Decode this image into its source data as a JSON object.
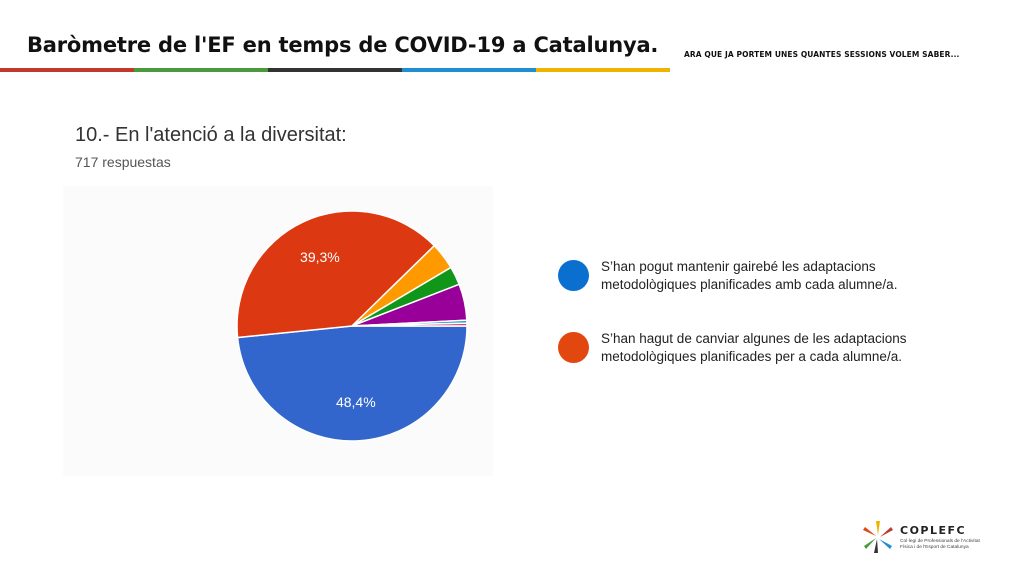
{
  "header": {
    "title": "Baròmetre de l'EF en temps de COVID-19 a Catalunya.",
    "subtitle": "ARA QUE JA PORTEM UNES QUANTES SESSIONS VOLEM SABER...",
    "bar_colors": [
      "#c0392b",
      "#4a9a3b",
      "#333333",
      "#1f8fd1",
      "#f0b400"
    ]
  },
  "chart_data": {
    "type": "pie",
    "title": "10.- En l'atenció a la diversitat:",
    "subtitle": "717 respuestas",
    "slices": [
      {
        "label": "S’han pogut mantenir gairebé les adaptacions metodològiques planificades amb cada alumne/a.",
        "value": 48.4,
        "display": "48,4%",
        "color": "#3366cc"
      },
      {
        "label": "S’han hagut de canviar algunes de les adaptacions metodològiques planificades per a cada alumne/a.",
        "value": 39.3,
        "display": "39,3%",
        "color": "#dc3912"
      },
      {
        "label": "",
        "value": 3.8,
        "display": "",
        "color": "#ff9900"
      },
      {
        "label": "",
        "value": 2.6,
        "display": "",
        "color": "#109618"
      },
      {
        "label": "",
        "value": 5.1,
        "display": "",
        "color": "#990099"
      },
      {
        "label": "",
        "value": 0.4,
        "display": "",
        "color": "#0099c6"
      },
      {
        "label": "",
        "value": 0.4,
        "display": "",
        "color": "#dd4477"
      }
    ],
    "legend_entries": [
      {
        "label": "S’han pogut mantenir gairebé les adaptacions metodològiques planificades amb cada alumne/a.",
        "color": "#0b6fcf"
      },
      {
        "label": "S’han hagut de canviar algunes de les adaptacions metodològiques planificades per a cada alumne/a.",
        "color": "#e2470f"
      }
    ],
    "legend_placement": "right"
  },
  "logo": {
    "name": "COPLEFC",
    "line1": "Col·legi de Professionals de l'Activitat",
    "line2": "Física i de l'Esport de Catalunya"
  }
}
